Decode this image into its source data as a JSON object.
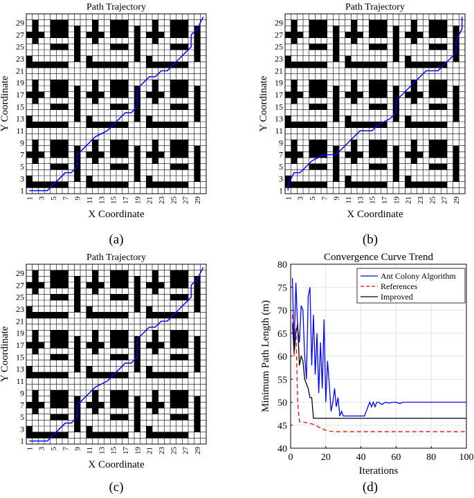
{
  "chart_data": [
    {
      "id": "a",
      "type": "heatmap",
      "panel_label": "(a)",
      "title": "Path Trajectory",
      "xlabel": "X Coordinate",
      "ylabel": "Y Coordinate",
      "grid_size": [
        30,
        30
      ],
      "xticks": [
        1,
        3,
        5,
        7,
        9,
        11,
        13,
        15,
        17,
        19,
        21,
        23,
        25,
        27,
        29
      ],
      "yticks": [
        1,
        3,
        5,
        7,
        9,
        11,
        13,
        15,
        17,
        19,
        21,
        23,
        25,
        27,
        29
      ],
      "path": [
        [
          1,
          1
        ],
        [
          4,
          1
        ],
        [
          6,
          3
        ],
        [
          7,
          4
        ],
        [
          8,
          4
        ],
        [
          9,
          5
        ],
        [
          9,
          7
        ],
        [
          11,
          9
        ],
        [
          12,
          10
        ],
        [
          14,
          11
        ],
        [
          15,
          12
        ],
        [
          16,
          13
        ],
        [
          17,
          14
        ],
        [
          18,
          14
        ],
        [
          19,
          15
        ],
        [
          19,
          18
        ],
        [
          21,
          20
        ],
        [
          22,
          20
        ],
        [
          23,
          21
        ],
        [
          24,
          21
        ],
        [
          25,
          22
        ],
        [
          26,
          23
        ],
        [
          27,
          24
        ],
        [
          28,
          25
        ],
        [
          28,
          27
        ],
        [
          29,
          28
        ],
        [
          30,
          30
        ]
      ]
    },
    {
      "id": "b",
      "type": "heatmap",
      "panel_label": "(b)",
      "title": "Path Trajectory",
      "xlabel": "X Coordinate",
      "ylabel": "Y Coordinate",
      "grid_size": [
        30,
        30
      ],
      "xticks": [
        1,
        3,
        5,
        7,
        9,
        11,
        13,
        15,
        17,
        19,
        21,
        23,
        25,
        27,
        29
      ],
      "yticks": [
        1,
        3,
        5,
        7,
        9,
        11,
        13,
        15,
        17,
        19,
        21,
        23,
        25,
        27,
        29
      ],
      "path": [
        [
          1,
          1
        ],
        [
          1,
          2
        ],
        [
          2,
          4
        ],
        [
          3,
          4
        ],
        [
          5,
          6
        ],
        [
          7,
          7
        ],
        [
          9,
          7
        ],
        [
          10,
          8
        ],
        [
          11,
          9
        ],
        [
          12,
          10
        ],
        [
          13,
          11
        ],
        [
          15,
          11
        ],
        [
          16,
          12
        ],
        [
          18,
          13
        ],
        [
          19,
          14
        ],
        [
          19,
          16
        ],
        [
          20,
          17
        ],
        [
          21,
          18
        ],
        [
          22,
          19
        ],
        [
          23,
          20
        ],
        [
          24,
          21
        ],
        [
          26,
          21
        ],
        [
          27,
          22
        ],
        [
          28,
          23
        ],
        [
          29,
          24
        ],
        [
          29,
          26
        ],
        [
          30,
          28
        ],
        [
          30,
          30
        ]
      ]
    },
    {
      "id": "c",
      "type": "heatmap",
      "panel_label": "(c)",
      "title": "Path Trajectory",
      "xlabel": "X Coordinate",
      "ylabel": "Y Coordinate",
      "grid_size": [
        30,
        30
      ],
      "xticks": [
        1,
        3,
        5,
        7,
        9,
        11,
        13,
        15,
        17,
        19,
        21,
        23,
        25,
        27,
        29
      ],
      "yticks": [
        1,
        3,
        5,
        7,
        9,
        11,
        13,
        15,
        17,
        19,
        21,
        23,
        25,
        27,
        29
      ],
      "path": [
        [
          1,
          1
        ],
        [
          4,
          1
        ],
        [
          6,
          3
        ],
        [
          7,
          4
        ],
        [
          8,
          4
        ],
        [
          9,
          5
        ],
        [
          9,
          7
        ],
        [
          11,
          9
        ],
        [
          12,
          10
        ],
        [
          14,
          11
        ],
        [
          15,
          12
        ],
        [
          16,
          13
        ],
        [
          17,
          14
        ],
        [
          18,
          14
        ],
        [
          19,
          15
        ],
        [
          19,
          18
        ],
        [
          21,
          20
        ],
        [
          22,
          20
        ],
        [
          23,
          21
        ],
        [
          24,
          21
        ],
        [
          25,
          22
        ],
        [
          26,
          23
        ],
        [
          27,
          24
        ],
        [
          28,
          25
        ],
        [
          28,
          27
        ],
        [
          29,
          28
        ],
        [
          30,
          30
        ]
      ]
    },
    {
      "id": "d",
      "type": "line",
      "panel_label": "(d)",
      "title": "Convergence Curve Trend",
      "xlabel": "Iterations",
      "ylabel": "Minimum Path Length (m)",
      "xlim": [
        0,
        100
      ],
      "ylim": [
        40,
        80
      ],
      "xticks": [
        0,
        20,
        40,
        60,
        80,
        100
      ],
      "yticks": [
        40,
        45,
        50,
        55,
        60,
        65,
        70,
        75,
        80
      ],
      "grid": true,
      "legend_position": "top-right",
      "series": [
        {
          "name": "Ant Colony Algorithm",
          "color": "#0000ff",
          "dash": "solid",
          "x": [
            1,
            2,
            3,
            4,
            5,
            6,
            7,
            8,
            9,
            10,
            11,
            12,
            13,
            14,
            15,
            16,
            17,
            18,
            19,
            20,
            21,
            22,
            23,
            24,
            25,
            26,
            27,
            28,
            29,
            30,
            35,
            40,
            42,
            43,
            44,
            45,
            46,
            47,
            48,
            49,
            50,
            52,
            54,
            56,
            58,
            60,
            62,
            64,
            66,
            70,
            80,
            90,
            100
          ],
          "y": [
            77,
            62,
            76,
            66,
            63,
            71,
            70,
            60,
            55,
            73,
            75,
            58,
            69,
            56,
            65,
            52,
            63,
            53,
            68,
            50,
            59,
            54,
            48,
            50,
            53,
            49,
            51,
            47,
            48,
            47,
            47,
            47,
            47,
            48,
            49,
            50,
            49,
            50,
            49,
            50,
            50,
            49.5,
            50,
            49.8,
            50,
            50,
            49.7,
            50,
            50,
            50,
            50,
            50,
            50
          ]
        },
        {
          "name": "References",
          "color": "#ff0000",
          "dash": "dashed",
          "x": [
            1,
            2,
            3,
            4,
            5,
            6,
            8,
            10,
            12,
            14,
            16,
            18,
            20,
            22,
            25,
            30,
            40,
            60,
            80,
            100
          ],
          "y": [
            69,
            60,
            66,
            50,
            45.8,
            45.7,
            45.6,
            45.5,
            45.3,
            45,
            44.6,
            44.2,
            43.9,
            43.7,
            43.6,
            43.6,
            43.6,
            43.6,
            43.6,
            43.6
          ]
        },
        {
          "name": "Improved",
          "color": "#000000",
          "dash": "solid",
          "x": [
            1,
            2,
            3,
            4,
            5,
            6,
            7,
            8,
            9,
            10,
            11,
            12,
            13,
            15,
            20,
            30,
            42,
            60,
            80,
            100
          ],
          "y": [
            67,
            61,
            65,
            67,
            58,
            60,
            59,
            55,
            54,
            53,
            51,
            51,
            46.5,
            46.5,
            46.5,
            46.5,
            46.5,
            46.5,
            46.5,
            46.5
          ]
        }
      ]
    }
  ],
  "colors": {
    "obstacle": "#000000",
    "free_cell": "#ffffff",
    "grid_line": "#000000",
    "path": "#0000ff"
  }
}
